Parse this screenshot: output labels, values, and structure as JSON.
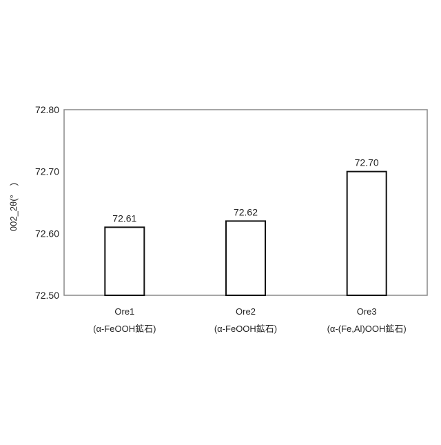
{
  "chart_data": {
    "type": "bar",
    "title": "",
    "xlabel": "",
    "ylabel": "002_2θ(°　)",
    "ylim": [
      72.5,
      72.8
    ],
    "yticks": [
      "72.50",
      "72.60",
      "72.70",
      "72.80"
    ],
    "grid": false,
    "categories": [
      {
        "line1": "Ore1",
        "line2": "(α-FeOOH鉱石)"
      },
      {
        "line1": "Ore2",
        "line2": "(α-FeOOH鉱石)"
      },
      {
        "line1": "Ore3",
        "line2": "(α-(Fe,Al)OOH鉱石)"
      }
    ],
    "values": [
      72.61,
      72.62,
      72.7
    ],
    "data_labels": [
      "72.61",
      "72.62",
      "72.70"
    ],
    "colors": {
      "bar_fill": "#ffffff",
      "bar_stroke": "#111111",
      "frame": "#888888"
    }
  }
}
